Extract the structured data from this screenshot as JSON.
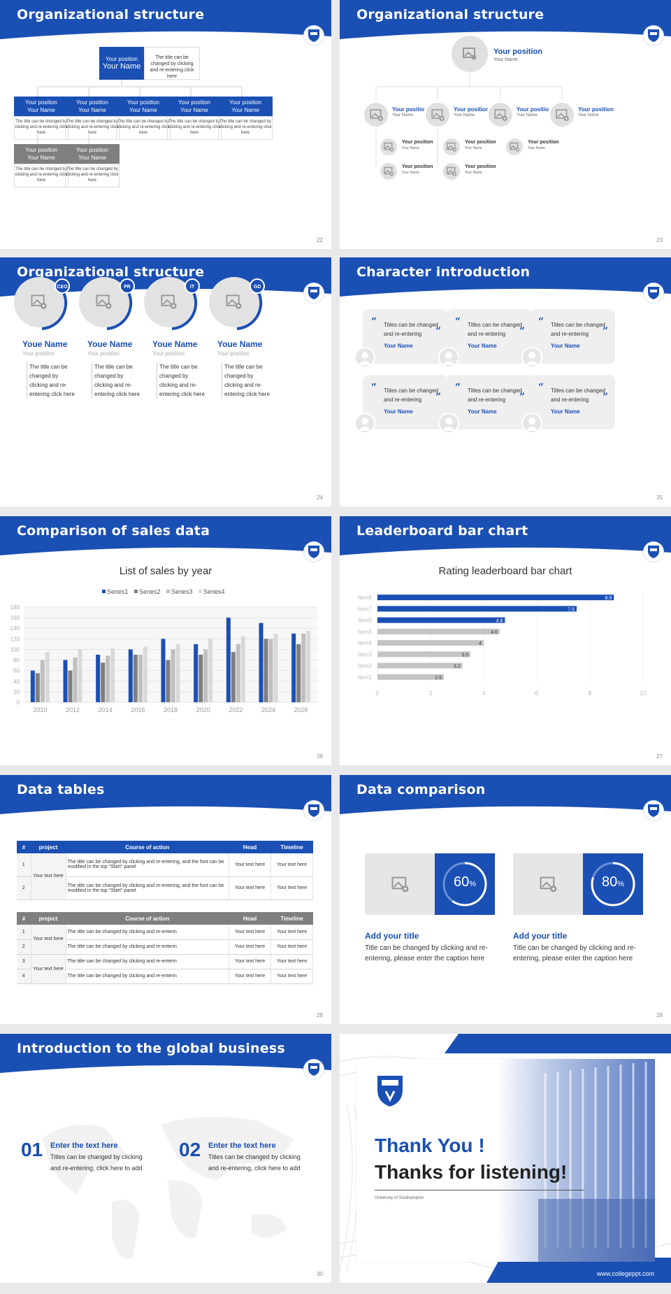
{
  "colors": {
    "primary": "#1a4fb4",
    "grey_bar": "#c4c4c4",
    "dark_grey": "#808080"
  },
  "titles": [
    "Organizational structure",
    "Organizational structure",
    "Organizational structure",
    "Character introduction",
    "Comparison of sales data",
    "Leaderboard bar chart",
    "Data tables",
    "Data comparison",
    "Introduction to the global business"
  ],
  "page_numbers": [
    "22",
    "23",
    "24",
    "25",
    "26",
    "27",
    "28",
    "29",
    "30"
  ],
  "s22": {
    "top_pos": "Your position",
    "top_name": "Your Name",
    "top_desc": "The title can be changed by clicking and re-entering click here",
    "pos": "Your position",
    "name": "Your Name",
    "desc": "The title can be changed by clicking and re-entering click here"
  },
  "s23": {
    "top_pos": "Your position",
    "top_name": "Your Name",
    "pos": "Your position",
    "name": "Your Name"
  },
  "s24": {
    "members": [
      {
        "badge": "CEO",
        "name": "Youe Name",
        "pos": "Your position",
        "desc": "The title can be changed by clicking and re-entering click here"
      },
      {
        "badge": "PR",
        "name": "Youe Name",
        "pos": "Your position",
        "desc": "The title can be changed by clicking and re-entering click here"
      },
      {
        "badge": "IT",
        "name": "Youe Name",
        "pos": "Your position",
        "desc": "The title can be changed by clicking and re-entering click here"
      },
      {
        "badge": "GD",
        "name": "Youe Name",
        "pos": "Your position",
        "desc": "The title can be changed by clicking and re-entering click here"
      }
    ]
  },
  "s25": {
    "quote_text": "Titles can be changed and re-entering",
    "name": "Your Name"
  },
  "s26": {
    "chart_title": "List of sales by year"
  },
  "s27": {
    "chart_title": "Rating leaderboard bar chart"
  },
  "s28": {
    "headers": [
      "#",
      "project",
      "Course of action",
      "Head",
      "Timeline"
    ],
    "t1": {
      "rows": [
        {
          "num": "1",
          "project": "Your text here",
          "action": "The title can be changed by clicking and re-entering, and the font can be modified in the top \"Start\" panel",
          "head": "Your text here",
          "timeline": "Your text here"
        },
        {
          "num": "2",
          "action": "The title can be changed by clicking and re-entering, and the font can be modified in the top \"Start\" panel",
          "head": "Your text here",
          "timeline": "Your text here"
        }
      ]
    },
    "t2": {
      "rows": [
        {
          "num": "1",
          "project": "Your text here",
          "action": "The title can be changed by clicking and re-enterin",
          "head": "Your text here",
          "timeline": "Your text here"
        },
        {
          "num": "2",
          "action": "The title can be changed by clicking and re-enterin",
          "head": "Your text here",
          "timeline": "Your text here"
        },
        {
          "num": "3",
          "project": "Your text here",
          "action": "The title can be changed by clicking and re-enterin",
          "head": "Your text here",
          "timeline": "Your text here"
        },
        {
          "num": "4",
          "action": "The title can be changed by clicking and re-enterin",
          "head": "Your text here",
          "timeline": "Your text here"
        }
      ]
    }
  },
  "s29": {
    "items": [
      {
        "percent": "60",
        "unit": "%",
        "value": 60,
        "title": "Add your title",
        "desc": "Title can be changed by clicking and re-entering, please enter the caption here"
      },
      {
        "percent": "80",
        "unit": "%",
        "value": 80,
        "title": "Add your title",
        "desc": "Title can be changed by clicking and re-entering, please enter the caption here"
      }
    ]
  },
  "s30": {
    "items": [
      {
        "num": "01",
        "heading": "Enter the text here",
        "desc": "Titles can be changed by clicking and re-entering, click here to add"
      },
      {
        "num": "02",
        "heading": "Enter the text here",
        "desc": "Titles can be changed by clicking and re-entering, click here to add"
      }
    ]
  },
  "end": {
    "thank_you": "Thank You !",
    "thanks": "Thanks for listening!",
    "university": "University of Southampton",
    "url": "www.collegeppt.com"
  },
  "chart_data": [
    {
      "type": "bar",
      "title": "List of sales by year",
      "categories": [
        "2010",
        "2012",
        "2014",
        "2016",
        "2018",
        "2020",
        "2022",
        "2024",
        "2026"
      ],
      "series": [
        {
          "name": "Series1",
          "values": [
            60,
            80,
            90,
            100,
            120,
            110,
            160,
            150,
            130
          ]
        },
        {
          "name": "Series2",
          "values": [
            55,
            60,
            75,
            90,
            80,
            90,
            95,
            120,
            110
          ]
        },
        {
          "name": "Series3",
          "values": [
            80,
            85,
            88,
            90,
            100,
            100,
            110,
            120,
            130
          ]
        },
        {
          "name": "Series4",
          "values": [
            95,
            100,
            102,
            105,
            110,
            120,
            125,
            130,
            135
          ]
        }
      ],
      "yticks": [
        "0",
        "20",
        "40",
        "60",
        "80",
        "100",
        "120",
        "140",
        "160",
        "180"
      ],
      "ylim": [
        0,
        180
      ],
      "legend": "top"
    },
    {
      "type": "bar",
      "orientation": "horizontal",
      "title": "Rating leaderboard bar chart",
      "categories": [
        "Item8",
        "Item7",
        "Item6",
        "Item5",
        "Item4",
        "Item3",
        "Item2",
        "Item1"
      ],
      "values": [
        8.9,
        7.5,
        4.8,
        4.6,
        4,
        3.5,
        3.2,
        2.5
      ],
      "xticks": [
        "0",
        "2",
        "4",
        "6",
        "8",
        "10"
      ],
      "xlim": [
        0,
        10
      ]
    }
  ]
}
